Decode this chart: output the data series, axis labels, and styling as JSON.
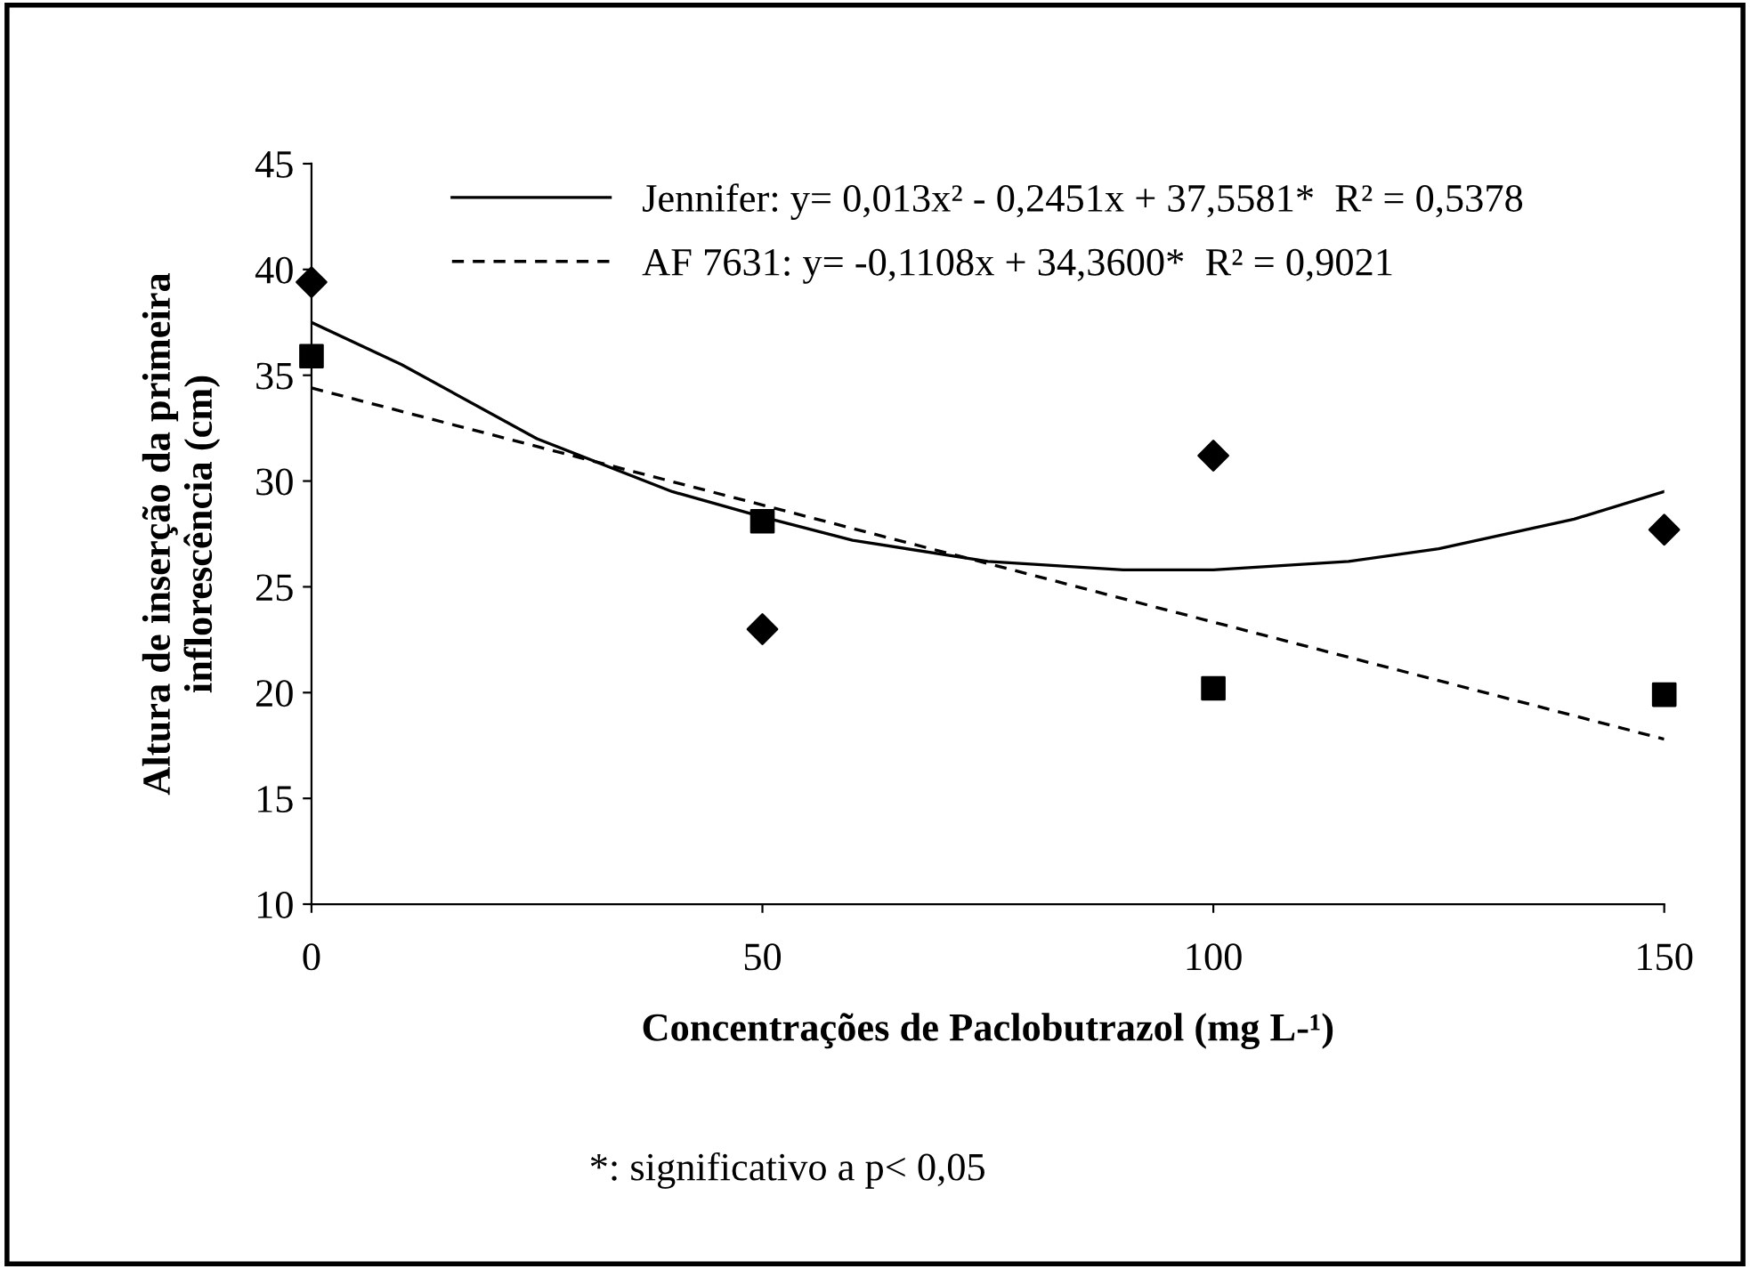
{
  "chart_data": {
    "type": "scatter",
    "xlabel": "Concentrações de Paclobutrazol (mg L-¹)",
    "ylabel": "Altura de inserção da primeira\ninflorescência (cm)",
    "xlim": [
      0,
      150
    ],
    "xticks": [
      0,
      50,
      100,
      150
    ],
    "ylim": [
      10,
      45
    ],
    "yticks": [
      10,
      15,
      20,
      25,
      30,
      35,
      40,
      45
    ],
    "grid": false,
    "legend": "top",
    "annotations": [
      "*: significativo a p< 0,05"
    ],
    "series": [
      {
        "marker": "diamond",
        "color": "#000000",
        "x": [
          0,
          50,
          100,
          150
        ],
        "values": [
          39.4,
          23.0,
          31.2,
          27.7
        ]
      },
      {
        "marker": "square",
        "color": "#000000",
        "x": [
          0,
          50,
          100,
          150
        ],
        "values": [
          35.9,
          28.1,
          20.2,
          19.9
        ]
      },
      {
        "type": "line",
        "name": "Jennifer: y= 0,013x² - 0,2451x + 37,5581*  R² = 0,5378",
        "line_style": "solid",
        "color": "#000000",
        "x": [
          0,
          10,
          25,
          40,
          50,
          60,
          75,
          90,
          100,
          115,
          125,
          140,
          150
        ],
        "values": [
          37.5,
          35.5,
          32.0,
          29.5,
          28.3,
          27.2,
          26.2,
          25.8,
          25.8,
          26.2,
          26.8,
          28.2,
          29.5
        ]
      },
      {
        "type": "line",
        "name": "AF 7631: y= -0,1108x + 34,3600*  R² = 0,9021",
        "line_style": "dashed",
        "color": "#000000",
        "x": [
          0,
          150
        ],
        "values": [
          34.4,
          17.8
        ]
      }
    ]
  }
}
